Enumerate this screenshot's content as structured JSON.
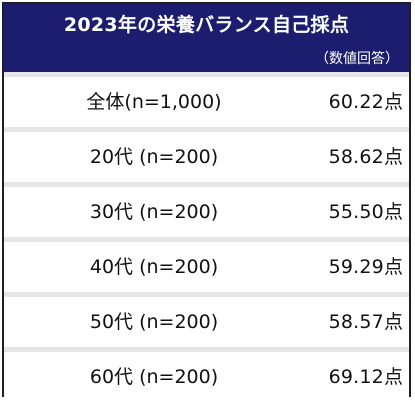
{
  "title": "2023年の栄養バランス自己採点",
  "unit_note": "（数値回答）",
  "colors": {
    "header_bg": "#1d1d6f",
    "row_bg": "#ffffff",
    "separator": "#e6e6e6",
    "text": "#111111"
  },
  "chart_data": {
    "type": "table",
    "title": "2023年の栄養バランス自己採点",
    "unit_note": "（数値回答）",
    "value_suffix": "点",
    "rows": [
      {
        "label": "全体(n=1,000)",
        "value": 60.22,
        "display": "60.22"
      },
      {
        "label": "20代 (n=200)",
        "value": 58.62,
        "display": "58.62"
      },
      {
        "label": "30代 (n=200)",
        "value": 55.5,
        "display": "55.50"
      },
      {
        "label": "40代 (n=200)",
        "value": 59.29,
        "display": "59.29"
      },
      {
        "label": "50代 (n=200)",
        "value": 58.57,
        "display": "58.57"
      },
      {
        "label": "60代 (n=200)",
        "value": 69.12,
        "display": "69.12"
      }
    ]
  }
}
